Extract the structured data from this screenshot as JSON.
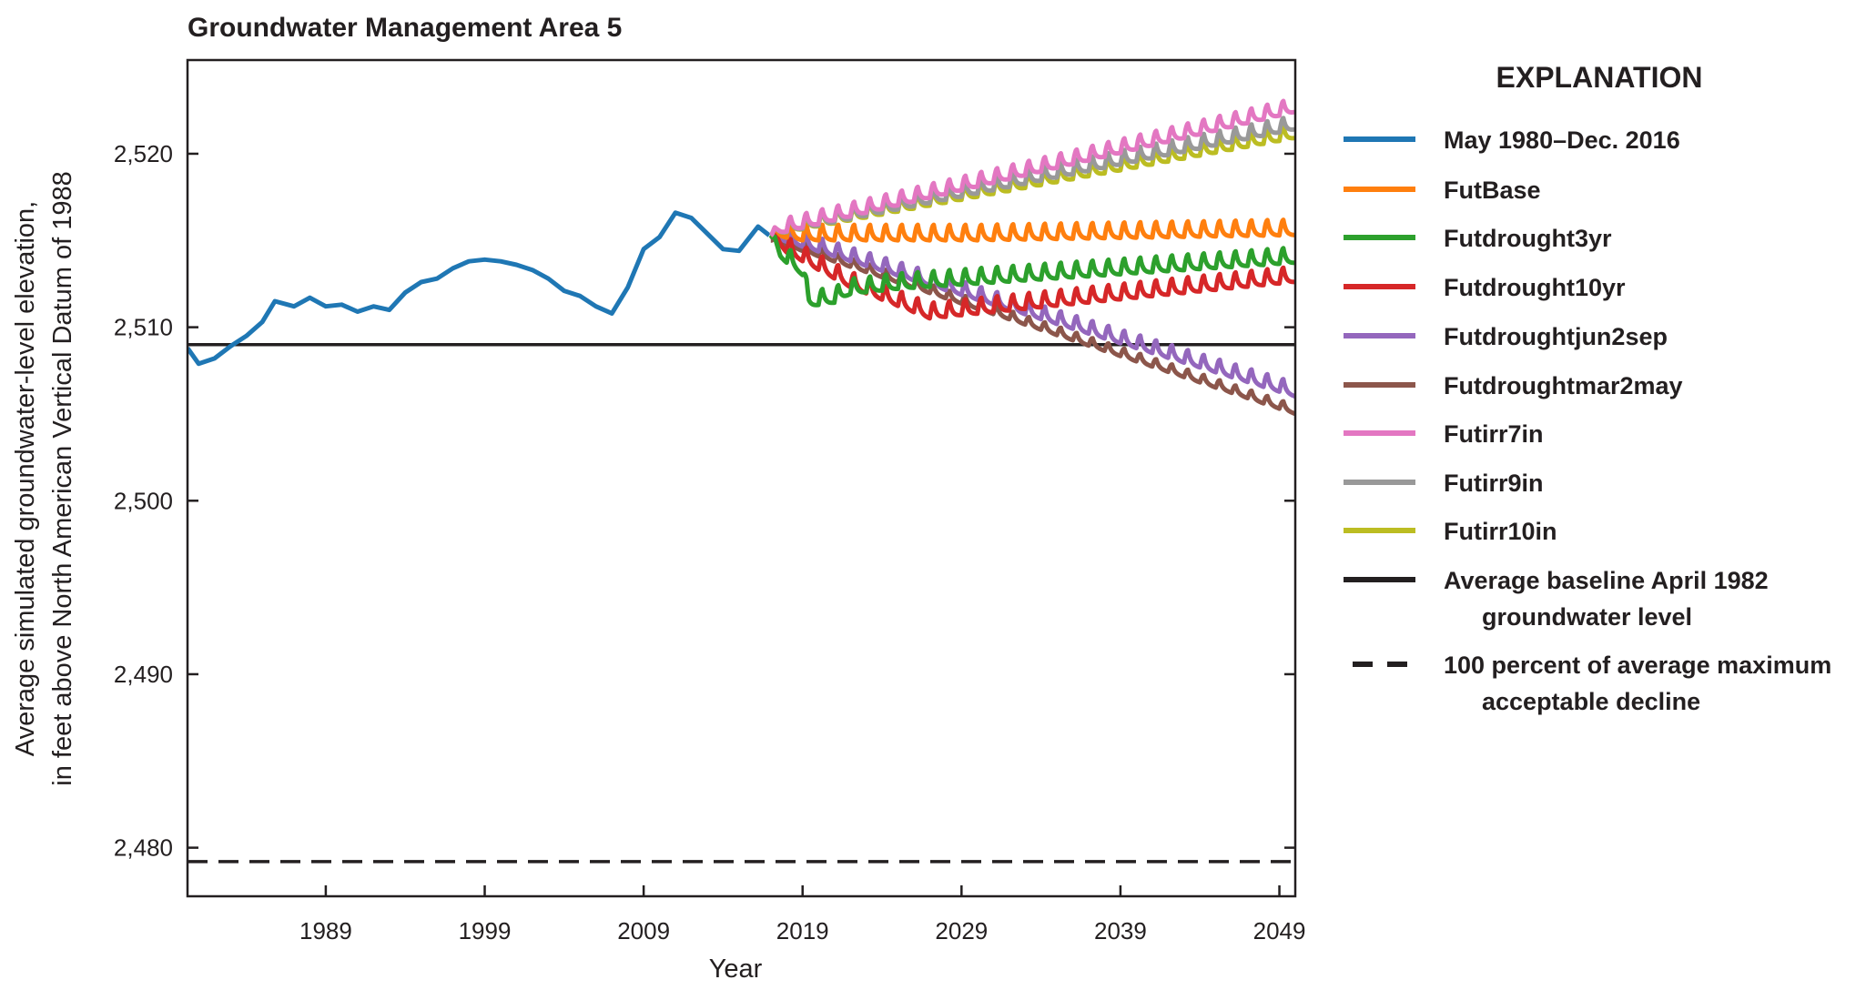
{
  "chart_data": {
    "type": "line",
    "title": "Groundwater Management Area 5",
    "xlabel": "Year",
    "ylabel_lines": [
      "Average simulated groundwater-level elevation,",
      "in feet above North American Vertical Datum of 1988"
    ],
    "xlim": [
      1980.3,
      2050
    ],
    "ylim": [
      2477.2,
      2525.4
    ],
    "xticks": [
      1989,
      1999,
      2009,
      2019,
      2029,
      2039,
      2049
    ],
    "xtick_labels": [
      "1989",
      "1999",
      "2009",
      "2019",
      "2029",
      "2039",
      "2049"
    ],
    "yticks": [
      2480,
      2490,
      2500,
      2510,
      2520
    ],
    "ytick_labels": [
      "2,480",
      "2,490",
      "2,500",
      "2,510",
      "2,520"
    ],
    "grid": false,
    "legend_title": "EXPLANATION",
    "legend_placement": "right, outside plot",
    "series": [
      {
        "name": "May 1980–Dec. 2016",
        "color": "#1f77b4",
        "seasonal_range": 0,
        "points": [
          [
            1980.3,
            2508.8
          ],
          [
            1981,
            2507.9
          ],
          [
            1982,
            2508.2
          ],
          [
            1983,
            2508.9
          ],
          [
            1984,
            2509.5
          ],
          [
            1985,
            2510.3
          ],
          [
            1985.8,
            2511.5
          ],
          [
            1987,
            2511.2
          ],
          [
            1988,
            2511.7
          ],
          [
            1989,
            2511.2
          ],
          [
            1990,
            2511.3
          ],
          [
            1991,
            2510.9
          ],
          [
            1992,
            2511.2
          ],
          [
            1993,
            2511.0
          ],
          [
            1994,
            2512.0
          ],
          [
            1995,
            2512.6
          ],
          [
            1996,
            2512.8
          ],
          [
            1997,
            2513.4
          ],
          [
            1998,
            2513.8
          ],
          [
            1999,
            2513.9
          ],
          [
            2000,
            2513.8
          ],
          [
            2001,
            2513.6
          ],
          [
            2002,
            2513.3
          ],
          [
            2003,
            2512.8
          ],
          [
            2004,
            2512.1
          ],
          [
            2005,
            2511.8
          ],
          [
            2006,
            2511.2
          ],
          [
            2007,
            2510.8
          ],
          [
            2008,
            2512.3
          ],
          [
            2009,
            2514.5
          ],
          [
            2010,
            2515.2
          ],
          [
            2011,
            2516.6
          ],
          [
            2012,
            2516.3
          ],
          [
            2013,
            2515.4
          ],
          [
            2014,
            2514.5
          ],
          [
            2015,
            2514.4
          ],
          [
            2016.2,
            2515.8
          ],
          [
            2016.9,
            2515.3
          ]
        ]
      },
      {
        "name": "FutBase",
        "color": "#ff7f0e",
        "seasonal_range": 0.9,
        "points": [
          [
            2017,
            2515.3
          ],
          [
            2019,
            2515.0
          ],
          [
            2030,
            2515.0
          ],
          [
            2050,
            2515.3
          ]
        ]
      },
      {
        "name": "Futdrought3yr",
        "color": "#2ca02c",
        "seasonal_range": 0.9,
        "points": [
          [
            2017,
            2515.3
          ],
          [
            2017.6,
            2514.0
          ],
          [
            2019,
            2513.0
          ],
          [
            2019.4,
            2511.2
          ],
          [
            2021,
            2511.4
          ],
          [
            2022,
            2511.9
          ],
          [
            2025,
            2512.2
          ],
          [
            2050,
            2513.7
          ]
        ]
      },
      {
        "name": "Futdrought10yr",
        "color": "#d62728",
        "seasonal_range": 0.9,
        "points": [
          [
            2017,
            2515.3
          ],
          [
            2018,
            2514.3
          ],
          [
            2022,
            2512.3
          ],
          [
            2027,
            2510.5
          ],
          [
            2050,
            2512.6
          ]
        ]
      },
      {
        "name": "Futdroughtjun2sep",
        "color": "#9467bd",
        "seasonal_range": 0.8,
        "points": [
          [
            2017,
            2515.2
          ],
          [
            2050,
            2506.0
          ]
        ]
      },
      {
        "name": "Futdroughtmar2may",
        "color": "#8c564b",
        "seasonal_range": 0.5,
        "points": [
          [
            2017,
            2515.0
          ],
          [
            2050,
            2505.0
          ]
        ]
      },
      {
        "name": "Futirr7in",
        "color": "#e377c2",
        "seasonal_range": 0.8,
        "points": [
          [
            2017,
            2515.3
          ],
          [
            2050,
            2522.4
          ]
        ]
      },
      {
        "name": "Futirr9in",
        "color": "#999999",
        "seasonal_range": 0.8,
        "points": [
          [
            2017,
            2515.3
          ],
          [
            2050,
            2521.4
          ]
        ]
      },
      {
        "name": "Futirr10in",
        "color": "#bcbd22",
        "seasonal_range": 0.8,
        "points": [
          [
            2017,
            2515.3
          ],
          [
            2050,
            2520.9
          ]
        ]
      }
    ],
    "reference_lines": [
      {
        "name_lines": [
          "Average baseline April 1982",
          "groundwater level"
        ],
        "value": 2509,
        "color": "#231f20",
        "style": "solid"
      },
      {
        "name_lines": [
          "100 percent of average maximum",
          "acceptable decline"
        ],
        "value": 2479.2,
        "color": "#231f20",
        "style": "dashed"
      }
    ]
  }
}
